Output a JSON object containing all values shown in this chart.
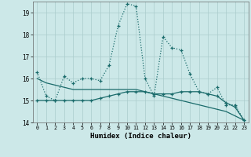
{
  "xlabel": "Humidex (Indice chaleur)",
  "x": [
    0,
    1,
    2,
    3,
    4,
    5,
    6,
    7,
    8,
    9,
    10,
    11,
    12,
    13,
    14,
    15,
    16,
    17,
    18,
    19,
    20,
    21,
    22,
    23
  ],
  "line1": [
    16.3,
    15.2,
    15.0,
    16.1,
    15.8,
    16.0,
    16.0,
    15.9,
    16.6,
    18.4,
    19.4,
    19.3,
    16.0,
    15.2,
    17.9,
    17.4,
    17.3,
    16.2,
    15.4,
    15.3,
    15.6,
    14.8,
    14.8,
    14.1
  ],
  "line2": [
    15.0,
    15.0,
    15.0,
    15.0,
    15.0,
    15.0,
    15.0,
    15.1,
    15.2,
    15.3,
    15.4,
    15.4,
    15.4,
    15.3,
    15.3,
    15.3,
    15.4,
    15.4,
    15.4,
    15.3,
    15.2,
    14.9,
    14.7,
    14.1
  ],
  "line3": [
    16.0,
    15.8,
    15.7,
    15.6,
    15.5,
    15.5,
    15.5,
    15.5,
    15.5,
    15.5,
    15.5,
    15.5,
    15.4,
    15.3,
    15.2,
    15.1,
    15.0,
    14.9,
    14.8,
    14.7,
    14.6,
    14.5,
    14.3,
    14.1
  ],
  "bg_color": "#cce8e8",
  "line_color": "#1a6b6b",
  "grid_color": "#aacccc",
  "ylim": [
    14.0,
    19.5
  ],
  "yticks": [
    14,
    15,
    16,
    17,
    18,
    19
  ],
  "xticks": [
    0,
    1,
    2,
    3,
    4,
    5,
    6,
    7,
    8,
    9,
    10,
    11,
    12,
    13,
    14,
    15,
    16,
    17,
    18,
    19,
    20,
    21,
    22,
    23
  ]
}
